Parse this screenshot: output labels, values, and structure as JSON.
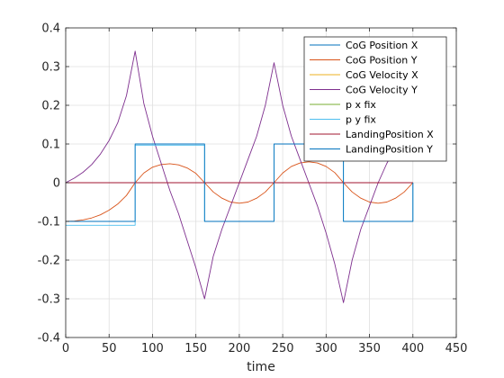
{
  "chart_data": {
    "type": "line",
    "title": "",
    "xlabel": "time",
    "ylabel": "",
    "xlim": [
      0,
      450
    ],
    "ylim": [
      -0.4,
      0.4
    ],
    "xticks": [
      0,
      50,
      100,
      150,
      200,
      250,
      300,
      350,
      400,
      450
    ],
    "yticks": [
      -0.4,
      -0.3,
      -0.2,
      -0.1,
      0,
      0.1,
      0.2,
      0.3,
      0.4
    ],
    "xtick_labels": [
      "0",
      "50",
      "100",
      "150",
      "200",
      "250",
      "300",
      "350",
      "400",
      "450"
    ],
    "ytick_labels": [
      "-0.4",
      "-0.3",
      "-0.2",
      "-0.1",
      "0",
      "0.1",
      "0.2",
      "0.3",
      "0.4"
    ],
    "grid": true,
    "legend_position": "top-right",
    "series": [
      {
        "name": "CoG Position X",
        "color": "#0072BD",
        "x": [
          0,
          400
        ],
        "y": [
          0,
          0
        ]
      },
      {
        "name": "CoG Position Y",
        "color": "#D95319",
        "x": [
          0,
          10,
          20,
          30,
          40,
          50,
          60,
          70,
          80,
          90,
          100,
          110,
          120,
          130,
          140,
          150,
          160,
          170,
          180,
          190,
          200,
          210,
          220,
          230,
          240,
          250,
          260,
          270,
          280,
          290,
          300,
          310,
          320,
          330,
          340,
          350,
          360,
          370,
          380,
          390,
          400
        ],
        "y": [
          -0.1,
          -0.099,
          -0.096,
          -0.091,
          -0.083,
          -0.071,
          -0.055,
          -0.033,
          0.0,
          0.025,
          0.04,
          0.047,
          0.049,
          0.046,
          0.038,
          0.024,
          0.0,
          -0.024,
          -0.04,
          -0.05,
          -0.053,
          -0.05,
          -0.04,
          -0.024,
          0.0,
          0.025,
          0.042,
          0.051,
          0.054,
          0.051,
          0.042,
          0.026,
          0.0,
          -0.024,
          -0.04,
          -0.05,
          -0.053,
          -0.05,
          -0.04,
          -0.024,
          0.0
        ]
      },
      {
        "name": "CoG Velocity X",
        "color": "#EDB120",
        "x": [
          0,
          400
        ],
        "y": [
          0,
          0
        ]
      },
      {
        "name": "CoG Velocity Y",
        "color": "#7E2F8E",
        "x": [
          0,
          10,
          20,
          30,
          40,
          50,
          60,
          70,
          80,
          90,
          100,
          110,
          120,
          130,
          140,
          150,
          160,
          170,
          180,
          190,
          200,
          210,
          220,
          230,
          240,
          250,
          260,
          270,
          280,
          290,
          300,
          310,
          320,
          330,
          340,
          350,
          360,
          370,
          380,
          390,
          400
        ],
        "y": [
          0,
          0.012,
          0.027,
          0.047,
          0.074,
          0.109,
          0.155,
          0.225,
          0.34,
          0.205,
          0.12,
          0.05,
          -0.02,
          -0.08,
          -0.15,
          -0.22,
          -0.3,
          -0.19,
          -0.12,
          -0.06,
          0.0,
          0.06,
          0.12,
          0.2,
          0.31,
          0.2,
          0.12,
          0.06,
          0.0,
          -0.06,
          -0.13,
          -0.21,
          -0.31,
          -0.2,
          -0.12,
          -0.06,
          0.0,
          0.05,
          0.09,
          0.1,
          0.11
        ]
      },
      {
        "name": "p x fix",
        "color": "#77AC30",
        "x": [
          0,
          400
        ],
        "y": [
          0,
          0
        ]
      },
      {
        "name": "p y fix",
        "color": "#4DBEEE",
        "x": [
          0,
          80,
          80,
          160,
          160,
          240,
          240,
          320,
          320,
          400,
          400
        ],
        "y": [
          -0.11,
          -0.11,
          0.097,
          0.097,
          -0.1,
          -0.1,
          0.1,
          0.1,
          -0.1,
          -0.1,
          0
        ]
      },
      {
        "name": "LandingPosition X",
        "color": "#A2142F",
        "x": [
          0,
          400
        ],
        "y": [
          0,
          0
        ]
      },
      {
        "name": "LandingPosition Y",
        "color": "#0072BD",
        "x": [
          0,
          80,
          80,
          160,
          160,
          240,
          240,
          320,
          320,
          400,
          400
        ],
        "y": [
          -0.1,
          -0.1,
          0.1,
          0.1,
          -0.1,
          -0.1,
          0.1,
          0.1,
          -0.1,
          -0.1,
          0
        ]
      }
    ]
  }
}
